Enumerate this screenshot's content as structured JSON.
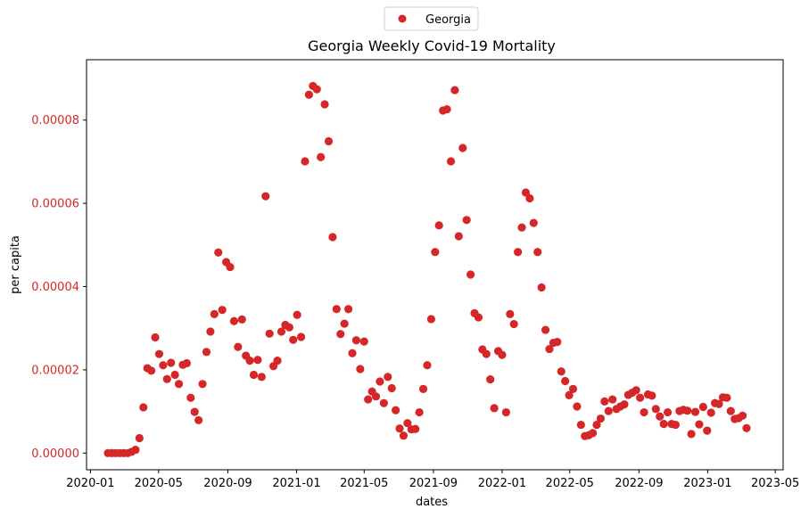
{
  "chart_data": {
    "type": "scatter",
    "title": "Georgia Weekly Covid-19 Mortality",
    "xlabel": "dates",
    "ylabel": "per capita",
    "legend": {
      "entries": [
        "Georgia"
      ],
      "placement": "top-center (outside plot)"
    },
    "colors": {
      "series": "#d62728",
      "ytick": "#d62728"
    },
    "xlim": [
      "2019-12-25",
      "2023-05-15"
    ],
    "ylim": [
      -4e-06,
      9.45e-05
    ],
    "x_ticks": [
      "2020-01-01",
      "2020-05-01",
      "2020-09-01",
      "2021-01-01",
      "2021-05-01",
      "2021-09-01",
      "2022-01-01",
      "2022-05-01",
      "2022-09-01",
      "2023-01-01",
      "2023-05-01"
    ],
    "x_tick_labels": [
      "2020-01",
      "2020-05",
      "2020-09",
      "2021-01",
      "2021-05",
      "2021-09",
      "2022-01",
      "2022-05",
      "2022-09",
      "2023-01",
      "2023-05"
    ],
    "y_ticks": [
      0.0,
      2e-05,
      4e-05,
      6e-05,
      8e-05
    ],
    "y_tick_labels": [
      "0.00000",
      "0.00002",
      "0.00004",
      "0.00006",
      "0.00008"
    ],
    "grid": false,
    "series": [
      {
        "name": "Georgia",
        "points": [
          [
            "2020-02-01",
            0
          ],
          [
            "2020-02-08",
            0
          ],
          [
            "2020-02-15",
            0
          ],
          [
            "2020-02-22",
            0
          ],
          [
            "2020-02-29",
            0
          ],
          [
            "2020-03-07",
            0
          ],
          [
            "2020-03-14",
            3e-07
          ],
          [
            "2020-03-21",
            8e-07
          ],
          [
            "2020-03-28",
            3.6e-06
          ],
          [
            "2020-04-04",
            1.1e-05
          ],
          [
            "2020-04-11",
            2.04e-05
          ],
          [
            "2020-04-18",
            1.98e-05
          ],
          [
            "2020-04-25",
            2.78e-05
          ],
          [
            "2020-05-02",
            2.38e-05
          ],
          [
            "2020-05-09",
            2.11e-05
          ],
          [
            "2020-05-16",
            1.78e-05
          ],
          [
            "2020-05-23",
            2.17e-05
          ],
          [
            "2020-05-30",
            1.88e-05
          ],
          [
            "2020-06-06",
            1.66e-05
          ],
          [
            "2020-06-13",
            2.12e-05
          ],
          [
            "2020-06-20",
            2.16e-05
          ],
          [
            "2020-06-27",
            1.33e-05
          ],
          [
            "2020-07-04",
            9.9e-06
          ],
          [
            "2020-07-11",
            7.9e-06
          ],
          [
            "2020-07-18",
            1.66e-05
          ],
          [
            "2020-07-25",
            2.43e-05
          ],
          [
            "2020-08-01",
            2.92e-05
          ],
          [
            "2020-08-08",
            3.34e-05
          ],
          [
            "2020-08-15",
            4.82e-05
          ],
          [
            "2020-08-22",
            3.44e-05
          ],
          [
            "2020-08-29",
            4.59e-05
          ],
          [
            "2020-09-05",
            4.47e-05
          ],
          [
            "2020-09-12",
            3.17e-05
          ],
          [
            "2020-09-19",
            2.55e-05
          ],
          [
            "2020-09-26",
            3.21e-05
          ],
          [
            "2020-10-03",
            2.34e-05
          ],
          [
            "2020-10-10",
            2.22e-05
          ],
          [
            "2020-10-17",
            1.88e-05
          ],
          [
            "2020-10-24",
            2.24e-05
          ],
          [
            "2020-10-31",
            1.83e-05
          ],
          [
            "2020-11-07",
            6.17e-05
          ],
          [
            "2020-11-14",
            2.87e-05
          ],
          [
            "2020-11-21",
            2.09e-05
          ],
          [
            "2020-11-28",
            2.22e-05
          ],
          [
            "2020-12-05",
            2.92e-05
          ],
          [
            "2020-12-12",
            3.08e-05
          ],
          [
            "2020-12-19",
            3.02e-05
          ],
          [
            "2020-12-26",
            2.72e-05
          ],
          [
            "2021-01-02",
            3.32e-05
          ],
          [
            "2021-01-09",
            2.79e-05
          ],
          [
            "2021-01-16",
            7.01e-05
          ],
          [
            "2021-01-23",
            8.61e-05
          ],
          [
            "2021-01-30",
            8.82e-05
          ],
          [
            "2021-02-06",
            8.74e-05
          ],
          [
            "2021-02-13",
            7.11e-05
          ],
          [
            "2021-02-20",
            8.38e-05
          ],
          [
            "2021-02-27",
            7.49e-05
          ],
          [
            "2021-03-06",
            5.19e-05
          ],
          [
            "2021-03-13",
            3.46e-05
          ],
          [
            "2021-03-20",
            2.86e-05
          ],
          [
            "2021-03-27",
            3.11e-05
          ],
          [
            "2021-04-03",
            3.46e-05
          ],
          [
            "2021-04-10",
            2.4e-05
          ],
          [
            "2021-04-17",
            2.71e-05
          ],
          [
            "2021-04-24",
            2.02e-05
          ],
          [
            "2021-05-01",
            2.68e-05
          ],
          [
            "2021-05-08",
            1.29e-05
          ],
          [
            "2021-05-15",
            1.48e-05
          ],
          [
            "2021-05-22",
            1.36e-05
          ],
          [
            "2021-05-29",
            1.72e-05
          ],
          [
            "2021-06-05",
            1.2e-05
          ],
          [
            "2021-06-12",
            1.83e-05
          ],
          [
            "2021-06-19",
            1.56e-05
          ],
          [
            "2021-06-26",
            1.03e-05
          ],
          [
            "2021-07-03",
            5.9e-06
          ],
          [
            "2021-07-10",
            4.2e-06
          ],
          [
            "2021-07-17",
            7.2e-06
          ],
          [
            "2021-07-24",
            5.7e-06
          ],
          [
            "2021-07-31",
            5.8e-06
          ],
          [
            "2021-08-07",
            9.8e-06
          ],
          [
            "2021-08-14",
            1.54e-05
          ],
          [
            "2021-08-21",
            2.11e-05
          ],
          [
            "2021-08-28",
            3.22e-05
          ],
          [
            "2021-09-04",
            4.83e-05
          ],
          [
            "2021-09-11",
            5.47e-05
          ],
          [
            "2021-09-18",
            8.23e-05
          ],
          [
            "2021-09-25",
            8.26e-05
          ],
          [
            "2021-10-02",
            7.01e-05
          ],
          [
            "2021-10-09",
            8.72e-05
          ],
          [
            "2021-10-16",
            5.21e-05
          ],
          [
            "2021-10-23",
            7.33e-05
          ],
          [
            "2021-10-30",
            5.6e-05
          ],
          [
            "2021-11-06",
            4.29e-05
          ],
          [
            "2021-11-13",
            3.36e-05
          ],
          [
            "2021-11-20",
            3.26e-05
          ],
          [
            "2021-11-27",
            2.49e-05
          ],
          [
            "2021-12-04",
            2.38e-05
          ],
          [
            "2021-12-11",
            1.77e-05
          ],
          [
            "2021-12-18",
            1.08e-05
          ],
          [
            "2021-12-25",
            2.45e-05
          ],
          [
            "2022-01-01",
            2.36e-05
          ],
          [
            "2022-01-08",
            9.8e-06
          ],
          [
            "2022-01-15",
            3.34e-05
          ],
          [
            "2022-01-22",
            3.1e-05
          ],
          [
            "2022-01-29",
            4.83e-05
          ],
          [
            "2022-02-05",
            5.42e-05
          ],
          [
            "2022-02-12",
            6.26e-05
          ],
          [
            "2022-02-19",
            6.12e-05
          ],
          [
            "2022-02-26",
            5.53e-05
          ],
          [
            "2022-03-05",
            4.83e-05
          ],
          [
            "2022-03-12",
            3.98e-05
          ],
          [
            "2022-03-19",
            2.96e-05
          ],
          [
            "2022-03-26",
            2.5e-05
          ],
          [
            "2022-04-02",
            2.65e-05
          ],
          [
            "2022-04-09",
            2.67e-05
          ],
          [
            "2022-04-16",
            1.96e-05
          ],
          [
            "2022-04-23",
            1.73e-05
          ],
          [
            "2022-04-30",
            1.39e-05
          ],
          [
            "2022-05-07",
            1.54e-05
          ],
          [
            "2022-05-14",
            1.12e-05
          ],
          [
            "2022-05-21",
            6.8e-06
          ],
          [
            "2022-05-28",
            4.1e-06
          ],
          [
            "2022-06-04",
            4.3e-06
          ],
          [
            "2022-06-11",
            4.8e-06
          ],
          [
            "2022-06-18",
            6.8e-06
          ],
          [
            "2022-06-25",
            8.3e-06
          ],
          [
            "2022-07-02",
            1.24e-05
          ],
          [
            "2022-07-09",
            1.01e-05
          ],
          [
            "2022-07-16",
            1.29e-05
          ],
          [
            "2022-07-23",
            1.06e-05
          ],
          [
            "2022-07-30",
            1.12e-05
          ],
          [
            "2022-08-06",
            1.17e-05
          ],
          [
            "2022-08-13",
            1.4e-05
          ],
          [
            "2022-08-20",
            1.45e-05
          ],
          [
            "2022-08-27",
            1.51e-05
          ],
          [
            "2022-09-03",
            1.33e-05
          ],
          [
            "2022-09-10",
            9.8e-06
          ],
          [
            "2022-09-17",
            1.41e-05
          ],
          [
            "2022-09-24",
            1.38e-05
          ],
          [
            "2022-10-01",
            1.06e-05
          ],
          [
            "2022-10-08",
            8.8e-06
          ],
          [
            "2022-10-15",
            7e-06
          ],
          [
            "2022-10-22",
            9.8e-06
          ],
          [
            "2022-10-29",
            7e-06
          ],
          [
            "2022-11-05",
            6.8e-06
          ],
          [
            "2022-11-12",
            1.01e-05
          ],
          [
            "2022-11-19",
            1.04e-05
          ],
          [
            "2022-11-26",
            1.02e-05
          ],
          [
            "2022-12-03",
            4.6e-06
          ],
          [
            "2022-12-10",
            9.9e-06
          ],
          [
            "2022-12-17",
            6.9e-06
          ],
          [
            "2022-12-24",
            1.11e-05
          ],
          [
            "2022-12-31",
            5.4e-06
          ],
          [
            "2023-01-07",
            9.7e-06
          ],
          [
            "2023-01-14",
            1.2e-05
          ],
          [
            "2023-01-21",
            1.18e-05
          ],
          [
            "2023-01-28",
            1.34e-05
          ],
          [
            "2023-02-04",
            1.33e-05
          ],
          [
            "2023-02-11",
            1.01e-05
          ],
          [
            "2023-02-18",
            8.2e-06
          ],
          [
            "2023-02-25",
            8.4e-06
          ],
          [
            "2023-03-04",
            9e-06
          ],
          [
            "2023-03-11",
            6e-06
          ]
        ]
      }
    ]
  }
}
